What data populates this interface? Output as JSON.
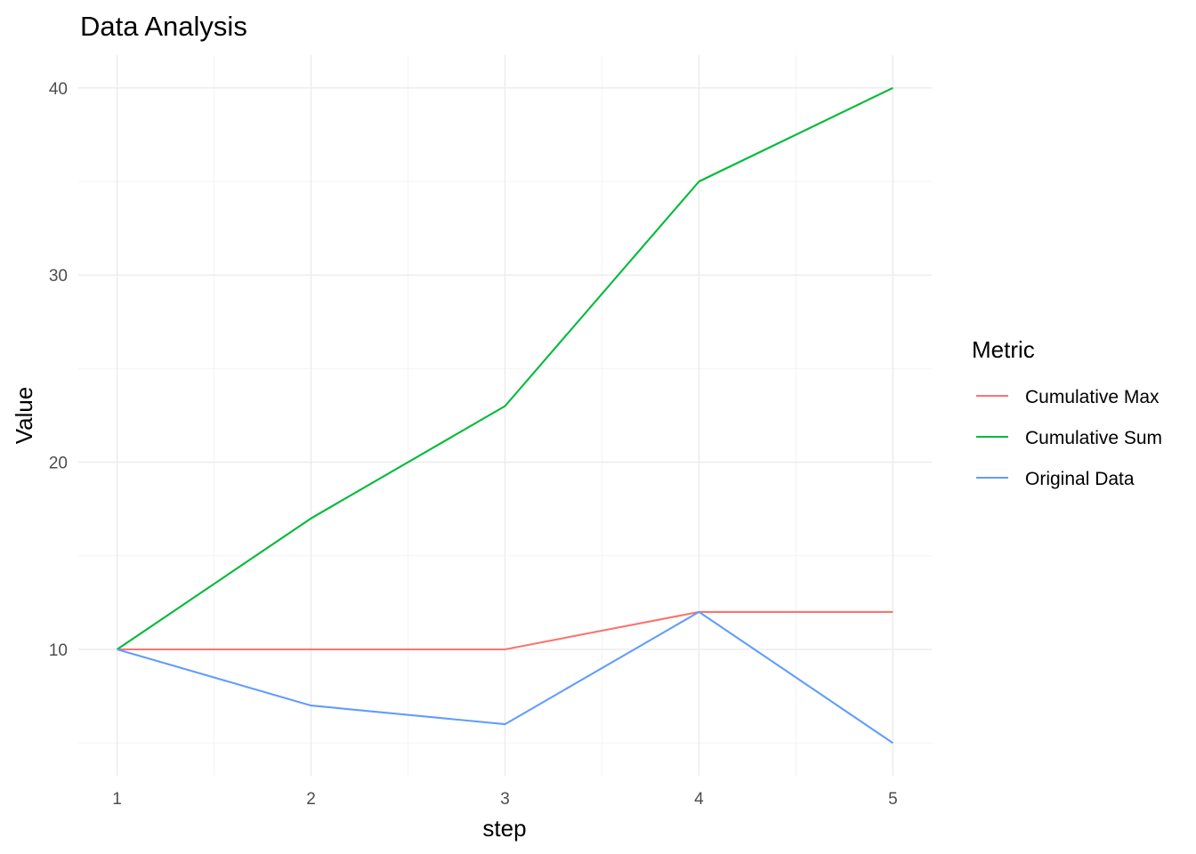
{
  "chart_data": {
    "type": "line",
    "title": "Data Analysis",
    "xlabel": "step",
    "ylabel": "Value",
    "x": [
      1,
      2,
      3,
      4,
      5
    ],
    "x_ticks": [
      "1",
      "2",
      "3",
      "4",
      "5"
    ],
    "y_ticks": [
      "10",
      "20",
      "30",
      "40"
    ],
    "y_tick_values": [
      10,
      20,
      30,
      40
    ],
    "y_minor_values": [
      5,
      15,
      25,
      35
    ],
    "x_minor_values": [
      1.5,
      2.5,
      3.5,
      4.5
    ],
    "xlim": [
      0.8,
      5.2
    ],
    "ylim": [
      3.25,
      41.75
    ],
    "grid": true,
    "legend": {
      "title": "Metric",
      "placement": "right"
    },
    "series": [
      {
        "name": "Cumulative Max",
        "color": "#F8766D",
        "values": [
          10,
          10,
          10,
          12,
          12
        ]
      },
      {
        "name": "Cumulative Sum",
        "color": "#00BA38",
        "values": [
          10,
          17,
          23,
          35,
          40
        ]
      },
      {
        "name": "Original Data",
        "color": "#619CFF",
        "values": [
          10,
          7,
          6,
          12,
          5
        ]
      }
    ]
  }
}
